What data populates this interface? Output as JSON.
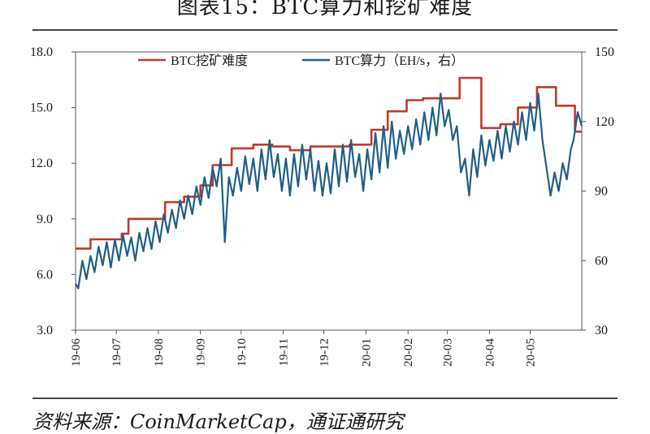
{
  "title": "图表15：BTC算力和挖矿难度",
  "source": "资料来源：CoinMarketCap，通证通研究",
  "chart_data": {
    "type": "line",
    "title": "图表15：BTC算力和挖矿难度",
    "x_ticks": [
      "19-06",
      "19-07",
      "19-08",
      "19-09",
      "19-10",
      "19-11",
      "19-12",
      "20-01",
      "20-02",
      "20-03",
      "20-04",
      "20-05"
    ],
    "y_left": {
      "label": "",
      "lim": [
        3.0,
        18.0
      ],
      "ticks": [
        "3.0",
        "6.0",
        "9.0",
        "12.0",
        "15.0",
        "18.0"
      ]
    },
    "y_right": {
      "label": "",
      "lim": [
        30,
        150
      ],
      "ticks": [
        "30",
        "60",
        "90",
        "120",
        "150"
      ]
    },
    "legend_position": "top-center",
    "grid": false,
    "series": [
      {
        "name": "BTC挖矿难度",
        "axis": "left",
        "color": "#c0392b",
        "step": true,
        "points": [
          [
            "2019-06-01",
            7.4
          ],
          [
            "2019-06-12",
            7.9
          ],
          [
            "2019-06-25",
            7.9
          ],
          [
            "2019-07-05",
            8.2
          ],
          [
            "2019-07-10",
            9.0
          ],
          [
            "2019-07-25",
            9.0
          ],
          [
            "2019-08-06",
            9.9
          ],
          [
            "2019-08-20",
            10.2
          ],
          [
            "2019-09-01",
            10.8
          ],
          [
            "2019-09-10",
            11.9
          ],
          [
            "2019-09-24",
            12.8
          ],
          [
            "2019-10-10",
            13.0
          ],
          [
            "2019-10-24",
            12.9
          ],
          [
            "2019-11-06",
            12.7
          ],
          [
            "2019-11-21",
            12.9
          ],
          [
            "2019-12-04",
            12.9
          ],
          [
            "2019-12-20",
            13.0
          ],
          [
            "2020-01-05",
            13.8
          ],
          [
            "2020-01-17",
            14.8
          ],
          [
            "2020-01-31",
            15.4
          ],
          [
            "2020-02-12",
            15.5
          ],
          [
            "2020-02-26",
            15.5
          ],
          [
            "2020-03-10",
            16.6
          ],
          [
            "2020-03-26",
            13.9
          ],
          [
            "2020-04-09",
            14.1
          ],
          [
            "2020-04-22",
            15.0
          ],
          [
            "2020-05-06",
            16.1
          ],
          [
            "2020-05-20",
            15.1
          ],
          [
            "2020-06-03",
            13.7
          ],
          [
            "2020-06-08",
            13.7
          ]
        ]
      },
      {
        "name": "BTC算力（EH/s，右）",
        "axis": "right",
        "color": "#1f5f86",
        "points": [
          [
            "2019-06-01",
            50
          ],
          [
            "2019-06-03",
            48
          ],
          [
            "2019-06-06",
            60
          ],
          [
            "2019-06-09",
            52
          ],
          [
            "2019-06-12",
            62
          ],
          [
            "2019-06-15",
            55
          ],
          [
            "2019-06-18",
            66
          ],
          [
            "2019-06-21",
            58
          ],
          [
            "2019-06-24",
            68
          ],
          [
            "2019-06-27",
            57
          ],
          [
            "2019-06-30",
            69
          ],
          [
            "2019-07-03",
            60
          ],
          [
            "2019-07-06",
            71
          ],
          [
            "2019-07-09",
            62
          ],
          [
            "2019-07-12",
            70
          ],
          [
            "2019-07-15",
            60
          ],
          [
            "2019-07-18",
            72
          ],
          [
            "2019-07-21",
            64
          ],
          [
            "2019-07-24",
            74
          ],
          [
            "2019-07-27",
            65
          ],
          [
            "2019-07-30",
            77
          ],
          [
            "2019-08-02",
            68
          ],
          [
            "2019-08-05",
            80
          ],
          [
            "2019-08-08",
            72
          ],
          [
            "2019-08-11",
            82
          ],
          [
            "2019-08-14",
            74
          ],
          [
            "2019-08-17",
            86
          ],
          [
            "2019-08-20",
            78
          ],
          [
            "2019-08-23",
            88
          ],
          [
            "2019-08-26",
            80
          ],
          [
            "2019-08-29",
            92
          ],
          [
            "2019-09-01",
            84
          ],
          [
            "2019-09-04",
            96
          ],
          [
            "2019-09-07",
            87
          ],
          [
            "2019-09-10",
            100
          ],
          [
            "2019-09-13",
            92
          ],
          [
            "2019-09-16",
            104
          ],
          [
            "2019-09-19",
            68
          ],
          [
            "2019-09-22",
            96
          ],
          [
            "2019-09-25",
            88
          ],
          [
            "2019-09-28",
            100
          ],
          [
            "2019-10-01",
            90
          ],
          [
            "2019-10-04",
            105
          ],
          [
            "2019-10-07",
            93
          ],
          [
            "2019-10-10",
            104
          ],
          [
            "2019-10-13",
            90
          ],
          [
            "2019-10-16",
            108
          ],
          [
            "2019-10-19",
            95
          ],
          [
            "2019-10-22",
            112
          ],
          [
            "2019-10-25",
            96
          ],
          [
            "2019-10-28",
            106
          ],
          [
            "2019-10-31",
            90
          ],
          [
            "2019-11-03",
            104
          ],
          [
            "2019-11-06",
            88
          ],
          [
            "2019-11-09",
            106
          ],
          [
            "2019-11-12",
            92
          ],
          [
            "2019-11-15",
            110
          ],
          [
            "2019-11-18",
            95
          ],
          [
            "2019-11-21",
            108
          ],
          [
            "2019-11-24",
            90
          ],
          [
            "2019-11-27",
            103
          ],
          [
            "2019-11-30",
            88
          ],
          [
            "2019-12-03",
            102
          ],
          [
            "2019-12-06",
            89
          ],
          [
            "2019-12-09",
            108
          ],
          [
            "2019-12-12",
            92
          ],
          [
            "2019-12-15",
            110
          ],
          [
            "2019-12-18",
            94
          ],
          [
            "2019-12-21",
            112
          ],
          [
            "2019-12-24",
            96
          ],
          [
            "2019-12-27",
            106
          ],
          [
            "2019-12-30",
            90
          ],
          [
            "2020-01-02",
            108
          ],
          [
            "2020-01-05",
            95
          ],
          [
            "2020-01-08",
            115
          ],
          [
            "2020-01-11",
            98
          ],
          [
            "2020-01-14",
            118
          ],
          [
            "2020-01-17",
            100
          ],
          [
            "2020-01-20",
            120
          ],
          [
            "2020-01-23",
            104
          ],
          [
            "2020-01-26",
            116
          ],
          [
            "2020-01-29",
            106
          ],
          [
            "2020-02-01",
            118
          ],
          [
            "2020-02-04",
            108
          ],
          [
            "2020-02-07",
            121
          ],
          [
            "2020-02-10",
            110
          ],
          [
            "2020-02-13",
            124
          ],
          [
            "2020-02-16",
            112
          ],
          [
            "2020-02-19",
            126
          ],
          [
            "2020-02-22",
            114
          ],
          [
            "2020-02-25",
            132
          ],
          [
            "2020-02-28",
            118
          ],
          [
            "2020-03-02",
            125
          ],
          [
            "2020-03-05",
            112
          ],
          [
            "2020-03-08",
            118
          ],
          [
            "2020-03-11",
            98
          ],
          [
            "2020-03-14",
            104
          ],
          [
            "2020-03-17",
            88
          ],
          [
            "2020-03-20",
            108
          ],
          [
            "2020-03-23",
            96
          ],
          [
            "2020-03-26",
            114
          ],
          [
            "2020-03-29",
            101
          ],
          [
            "2020-04-01",
            112
          ],
          [
            "2020-04-04",
            103
          ],
          [
            "2020-04-07",
            116
          ],
          [
            "2020-04-10",
            104
          ],
          [
            "2020-04-13",
            118
          ],
          [
            "2020-04-16",
            107
          ],
          [
            "2020-04-19",
            120
          ],
          [
            "2020-04-22",
            110
          ],
          [
            "2020-04-25",
            124
          ],
          [
            "2020-04-28",
            112
          ],
          [
            "2020-05-01",
            128
          ],
          [
            "2020-05-04",
            116
          ],
          [
            "2020-05-07",
            132
          ],
          [
            "2020-05-10",
            112
          ],
          [
            "2020-05-13",
            100
          ],
          [
            "2020-05-16",
            88
          ],
          [
            "2020-05-19",
            98
          ],
          [
            "2020-05-22",
            90
          ],
          [
            "2020-05-25",
            102
          ],
          [
            "2020-05-28",
            95
          ],
          [
            "2020-05-31",
            108
          ],
          [
            "2020-06-02",
            112
          ],
          [
            "2020-06-05",
            124
          ],
          [
            "2020-06-08",
            118
          ]
        ]
      }
    ]
  }
}
